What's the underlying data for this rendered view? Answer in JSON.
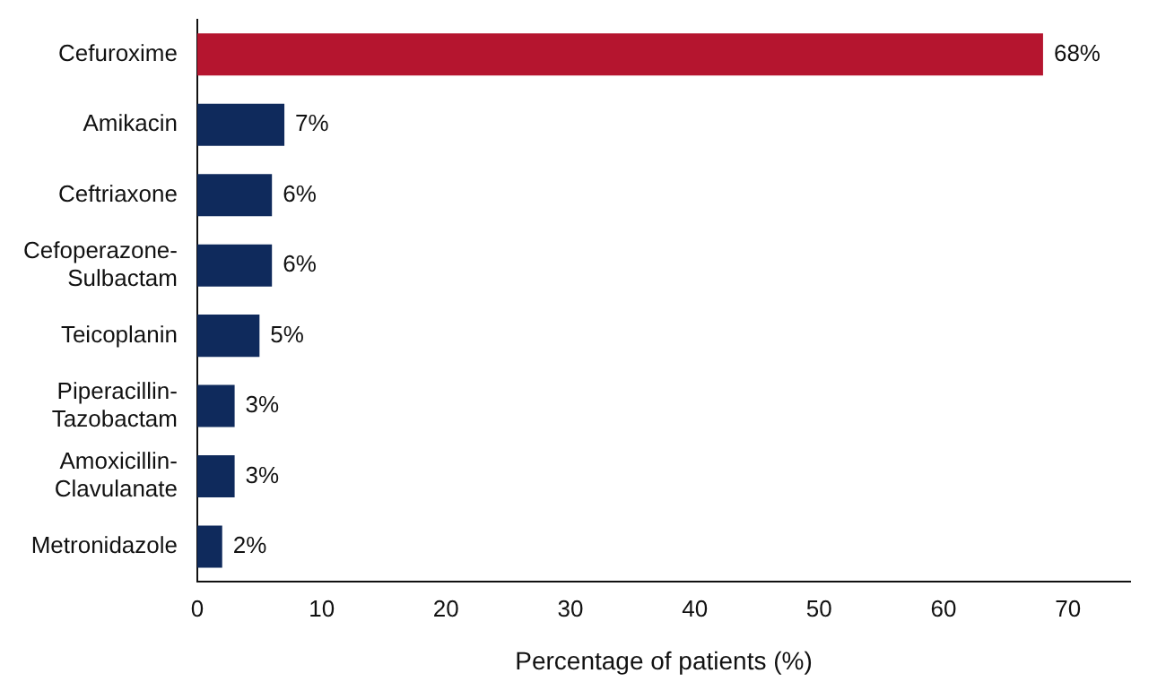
{
  "chart_data": {
    "type": "bar",
    "orientation": "horizontal",
    "xlabel": "Percentage of patients (%)",
    "categories": [
      "Cefuroxime",
      "Amikacin",
      "Ceftriaxone",
      "Cefoperazone-Sulbactam",
      "Teicoplanin",
      "Piperacillin-Tazobactam",
      "Amoxicillin-Clavulanate",
      "Metronidazole"
    ],
    "values": [
      68,
      7,
      6,
      6,
      5,
      3,
      3,
      2
    ],
    "colors": [
      "#b5152f",
      "#0f2a5c",
      "#0f2a5c",
      "#0f2a5c",
      "#0f2a5c",
      "#0f2a5c",
      "#0f2a5c",
      "#0f2a5c"
    ],
    "value_labels": [
      "68%",
      "7%",
      "6%",
      "6%",
      "5%",
      "3%",
      "3%",
      "2%"
    ],
    "xlim": [
      0,
      75
    ],
    "xticks": [
      0,
      10,
      20,
      30,
      40,
      50,
      60,
      70
    ],
    "grid": false,
    "legend": false
  }
}
